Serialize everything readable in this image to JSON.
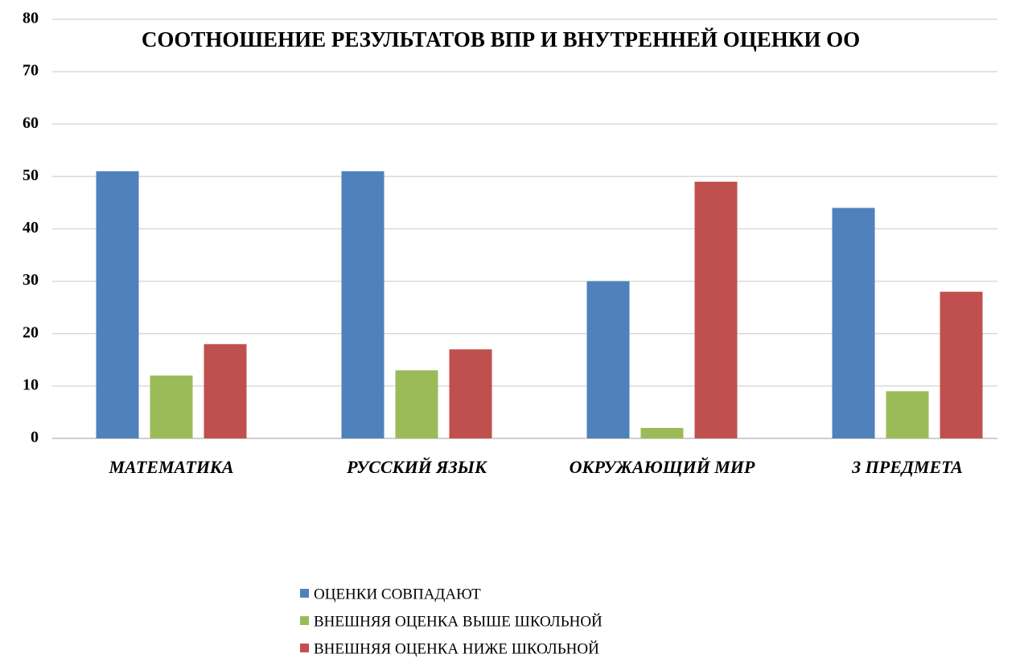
{
  "chart_data": {
    "type": "bar",
    "title": "СООТНОШЕНИЕ РЕЗУЛЬТАТОВ ВПР И ВНУТРЕННЕЙ ОЦЕНКИ ОО",
    "categories": [
      "МАТЕМАТИКА",
      "РУССКИЙ ЯЗЫК",
      "ОКРУЖАЮЩИЙ МИР",
      "3 ПРЕДМЕТА"
    ],
    "series": [
      {
        "name": "ОЦЕНКИ СОВПАДАЮТ",
        "color": "#4f81bd",
        "values": [
          51,
          51,
          30,
          44
        ]
      },
      {
        "name": "ВНЕШНЯЯ ОЦЕНКА ВЫШЕ ШКОЛЬНОЙ",
        "color": "#9bbb59",
        "values": [
          12,
          13,
          2,
          9
        ]
      },
      {
        "name": "ВНЕШНЯЯ ОЦЕНКА НИЖЕ ШКОЛЬНОЙ",
        "color": "#c0504d",
        "values": [
          18,
          17,
          49,
          28
        ]
      }
    ],
    "ylim": [
      0,
      80
    ],
    "yticks": [
      0,
      10,
      20,
      30,
      40,
      50,
      60,
      70,
      80
    ],
    "grid": true,
    "legend": "bottom"
  }
}
